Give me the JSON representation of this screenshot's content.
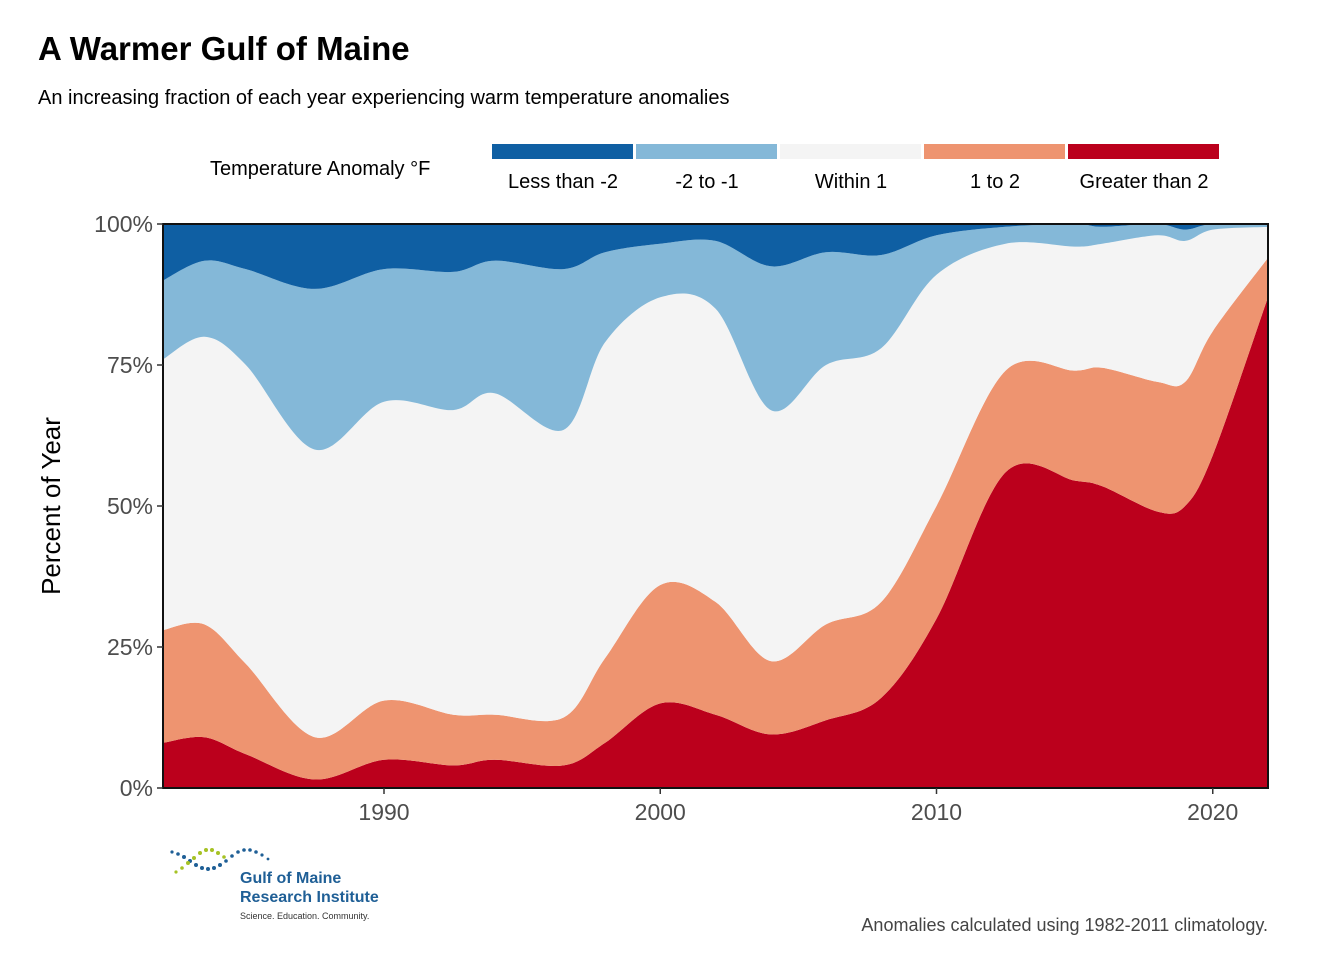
{
  "title": "A Warmer Gulf of Maine",
  "subtitle": "An increasing fraction of each year experiencing warm temperature anomalies",
  "legend": {
    "title": "Temperature Anomaly °F",
    "items": [
      {
        "label": "Less than -2",
        "color": "#0f5fa3"
      },
      {
        "label": "-2 to -1",
        "color": "#84b8d8"
      },
      {
        "label": "Within 1",
        "color": "#f4f4f4"
      },
      {
        "label": "1 to 2",
        "color": "#ee9470"
      },
      {
        "label": "Greater than 2",
        "color": "#bb001c"
      }
    ]
  },
  "caption": "Anomalies calculated using 1982-2011 climatology.",
  "logo": {
    "line1": "Gulf of Maine",
    "line2": "Research Institute",
    "line3": "Science. Education. Community."
  },
  "chart_data": {
    "type": "area",
    "stacked": true,
    "ylabel": "Percent of Year",
    "xlabel": "",
    "xlim": [
      1982,
      2022
    ],
    "ylim": [
      0,
      100
    ],
    "x_ticks": [
      1990,
      2000,
      2010,
      2020
    ],
    "y_ticks": [
      {
        "value": 0,
        "label": "0%"
      },
      {
        "value": 25,
        "label": "25%"
      },
      {
        "value": 50,
        "label": "50%"
      },
      {
        "value": 75,
        "label": "75%"
      },
      {
        "value": 100,
        "label": "100%"
      }
    ],
    "x": [
      1982,
      1983.5,
      1985,
      1987.5,
      1990,
      1992.5,
      1994,
      1996.5,
      1998,
      2000,
      2002,
      2004,
      2006,
      2008,
      2010,
      2012.5,
      2015,
      2016,
      2018,
      2019,
      2020,
      2022
    ],
    "series": [
      {
        "name": "Greater than 2",
        "color": "#bb001c",
        "values": [
          8,
          9,
          6,
          1.5,
          5,
          4,
          5,
          4,
          8,
          15,
          13,
          9.5,
          12,
          16,
          30,
          56,
          54.5,
          53.5,
          49,
          50,
          59,
          87
        ]
      },
      {
        "name": "1 to 2",
        "color": "#ee9470",
        "values": [
          20,
          20,
          16,
          7.5,
          10.5,
          9,
          8,
          8.5,
          15,
          21,
          20,
          13,
          17,
          17,
          20,
          18,
          19.5,
          21,
          23,
          22,
          22,
          7
        ]
      },
      {
        "name": "Within 1",
        "color": "#f4f4f4",
        "values": [
          48,
          51,
          53,
          51,
          53,
          54,
          57,
          51,
          56,
          51,
          52,
          44.5,
          46,
          45,
          41,
          22.5,
          22,
          22,
          26,
          25,
          18,
          5.5
        ]
      },
      {
        "name": "-2 to -1",
        "color": "#84b8d8",
        "values": [
          14,
          13.5,
          17,
          28.5,
          23.5,
          24.5,
          23.5,
          28.5,
          16,
          9.5,
          12,
          25.5,
          20,
          16.5,
          7,
          3,
          4,
          3,
          2,
          2,
          1,
          0.5
        ]
      },
      {
        "name": "Less than -2",
        "color": "#0f5fa3",
        "values": [
          10,
          6.5,
          8,
          11.5,
          8,
          8.5,
          6.5,
          8,
          5,
          3.5,
          3,
          7.5,
          5,
          5.5,
          2,
          0.5,
          0,
          0.5,
          0,
          1,
          0,
          0
        ]
      }
    ]
  }
}
